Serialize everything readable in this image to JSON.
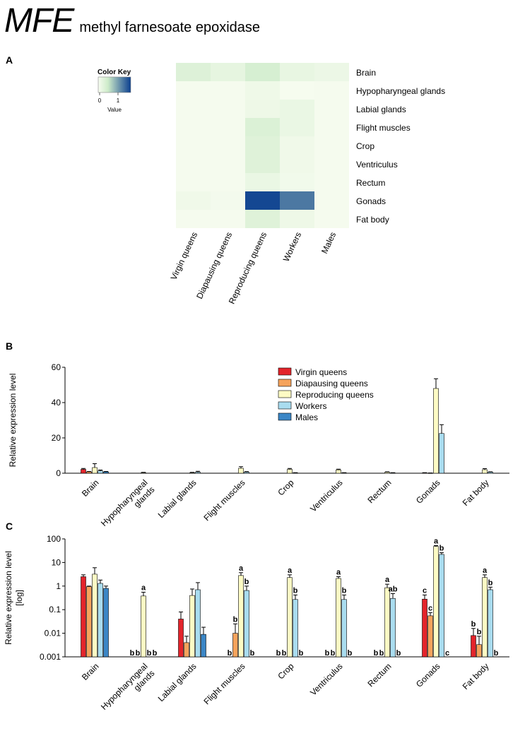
{
  "header": {
    "gene": "MFE",
    "full_name": "methyl farnesoate epoxidase"
  },
  "colors": {
    "virgin": "#e3242b",
    "diapausing": "#f5a35c",
    "reproducing": "#fdfbc4",
    "workers": "#a9dcef",
    "males": "#3b86c6",
    "heat_low": "#f7fcf0",
    "heat_mid": "#cdebc9",
    "heat_high": "#0b3f8f"
  },
  "chart_data": [
    {
      "panel": "A",
      "type": "heatmap",
      "color_key": {
        "title": "Color Key",
        "ticks": [
          "0",
          "1"
        ],
        "label": "Value",
        "range": [
          0,
          1.5
        ]
      },
      "columns": [
        "Virgin queens",
        "Diapausing queens",
        "Reproducing queens",
        "Workers",
        "Males"
      ],
      "rows": [
        "Brain",
        "Hypopharyngeal glands",
        "Labial glands",
        "Flight muscles",
        "Crop",
        "Ventriculus",
        "Rectum",
        "Gonads",
        "Fat body"
      ],
      "values": [
        [
          0.28,
          0.18,
          0.35,
          0.16,
          0.12
        ],
        [
          0.02,
          0.02,
          0.09,
          0.01,
          0.02
        ],
        [
          0.02,
          0.02,
          0.1,
          0.14,
          0.02
        ],
        [
          0.02,
          0.02,
          0.3,
          0.14,
          0.02
        ],
        [
          0.02,
          0.02,
          0.26,
          0.08,
          0.02
        ],
        [
          0.02,
          0.02,
          0.26,
          0.08,
          0.02
        ],
        [
          0.02,
          0.02,
          0.14,
          0.06,
          0.02
        ],
        [
          0.08,
          0.04,
          1.45,
          1.15,
          0.02
        ],
        [
          0.02,
          0.02,
          0.26,
          0.1,
          0.02
        ]
      ]
    },
    {
      "panel": "B",
      "type": "bar",
      "ylabel": "Relative expression level",
      "ylim": [
        0,
        60
      ],
      "yticks": [
        "0",
        "20",
        "40",
        "60"
      ],
      "categories": [
        "Brain",
        "Hypopharyngeal glands",
        "Labial glands",
        "Flight muscles",
        "Crop",
        "Ventriculus",
        "Rectum",
        "Gonads",
        "Fat body"
      ],
      "tick_labels": [
        [
          "Brain"
        ],
        [
          "Hypopharyngeal",
          "glands"
        ],
        [
          "Labial glands"
        ],
        [
          "Flight muscles"
        ],
        [
          "Crop"
        ],
        [
          "Ventriculus"
        ],
        [
          "Rectum"
        ],
        [
          "Gonads"
        ],
        [
          "Fat body"
        ]
      ],
      "legend": [
        "Virgin queens",
        "Diapausing queens",
        "Reproducing queens",
        "Workers",
        "Males"
      ],
      "series": [
        {
          "name": "Virgin queens",
          "values": [
            2.2,
            0,
            0,
            0,
            0,
            0,
            0,
            0.2,
            0
          ],
          "errors": [
            0.5,
            0,
            0,
            0,
            0,
            0,
            0,
            0.1,
            0
          ]
        },
        {
          "name": "Diapausing queens",
          "values": [
            0.8,
            0,
            0,
            0,
            0,
            0,
            0,
            0.1,
            0
          ],
          "errors": [
            0.2,
            0,
            0,
            0,
            0,
            0,
            0,
            0.05,
            0
          ]
        },
        {
          "name": "Reproducing queens",
          "values": [
            3.2,
            0.3,
            0.3,
            2.8,
            2.2,
            1.9,
            0.6,
            48,
            2.0
          ],
          "errors": [
            2.2,
            0.2,
            0.2,
            0.9,
            0.5,
            0.4,
            0.2,
            5.5,
            0.6
          ]
        },
        {
          "name": "Workers",
          "values": [
            1.3,
            0,
            0.6,
            0.6,
            0.2,
            0.2,
            0.2,
            22.5,
            0.6
          ],
          "errors": [
            0.5,
            0,
            0.5,
            0.3,
            0.1,
            0.1,
            0.1,
            5.0,
            0.2
          ]
        },
        {
          "name": "Males",
          "values": [
            0.8,
            0,
            0,
            0,
            0,
            0,
            0,
            0,
            0
          ],
          "errors": [
            0.2,
            0,
            0,
            0,
            0,
            0,
            0,
            0,
            0
          ]
        }
      ]
    },
    {
      "panel": "C",
      "type": "bar",
      "scale": "log",
      "ylabel": "Relative expression level",
      "ylabel2": "[log]",
      "ylim": [
        0.001,
        100
      ],
      "yticks": [
        "0.001",
        "0.01",
        "0.1",
        "1",
        "10",
        "100"
      ],
      "categories": [
        "Brain",
        "Hypopharyngeal glands",
        "Labial glands",
        "Flight muscles",
        "Crop",
        "Ventriculus",
        "Rectum",
        "Gonads",
        "Fat body"
      ],
      "tick_labels": [
        [
          "Brain"
        ],
        [
          "Hypopharyngeal",
          "glands"
        ],
        [
          "Labial glands"
        ],
        [
          "Flight muscles"
        ],
        [
          "Crop"
        ],
        [
          "Ventriculus"
        ],
        [
          "Rectum"
        ],
        [
          "Gonads"
        ],
        [
          "Fat body"
        ]
      ],
      "series": [
        {
          "name": "Virgin queens",
          "values": [
            2.5,
            null,
            0.04,
            null,
            null,
            null,
            null,
            0.28,
            0.008
          ],
          "errors_upper": [
            3.0,
            null,
            0.08,
            null,
            null,
            null,
            null,
            0.42,
            0.016
          ]
        },
        {
          "name": "Diapausing queens",
          "values": [
            0.95,
            null,
            0.004,
            0.01,
            null,
            null,
            null,
            0.055,
            0.0033
          ],
          "errors_upper": [
            1.0,
            null,
            0.0075,
            0.025,
            null,
            null,
            null,
            0.075,
            0.0075
          ]
        },
        {
          "name": "Reproducing queens",
          "values": [
            3.2,
            0.38,
            0.4,
            2.8,
            2.3,
            2.1,
            0.85,
            48,
            2.3
          ],
          "errors_upper": [
            6.0,
            0.55,
            0.75,
            3.7,
            3.0,
            2.5,
            1.2,
            52,
            3.0
          ]
        },
        {
          "name": "Workers",
          "values": [
            1.3,
            null,
            0.7,
            0.65,
            0.27,
            0.27,
            0.3,
            22,
            0.7
          ],
          "errors_upper": [
            1.8,
            null,
            1.4,
            1.0,
            0.42,
            0.42,
            0.48,
            26,
            0.9
          ]
        },
        {
          "name": "Males",
          "values": [
            0.8,
            null,
            0.009,
            null,
            null,
            null,
            null,
            null,
            null
          ],
          "errors_upper": [
            1.0,
            null,
            0.018,
            null,
            null,
            null,
            null,
            null,
            null
          ]
        }
      ],
      "letters": [
        [
          "",
          "",
          "",
          "",
          ""
        ],
        [
          "b",
          "b",
          "a",
          "b",
          "b"
        ],
        [
          "",
          "",
          "",
          "",
          ""
        ],
        [
          "b",
          "b",
          "a",
          "b",
          "b"
        ],
        [
          "b",
          "b",
          "a",
          "b",
          "b"
        ],
        [
          "b",
          "b",
          "a",
          "b",
          "b"
        ],
        [
          "b",
          "b",
          "a",
          "ab",
          "b"
        ],
        [
          "c",
          "c",
          "a",
          "b",
          "c"
        ],
        [
          "b",
          "b",
          "a",
          "b",
          "b"
        ]
      ]
    }
  ],
  "panel_labels": {
    "a": "A",
    "b": "B",
    "c": "C"
  }
}
